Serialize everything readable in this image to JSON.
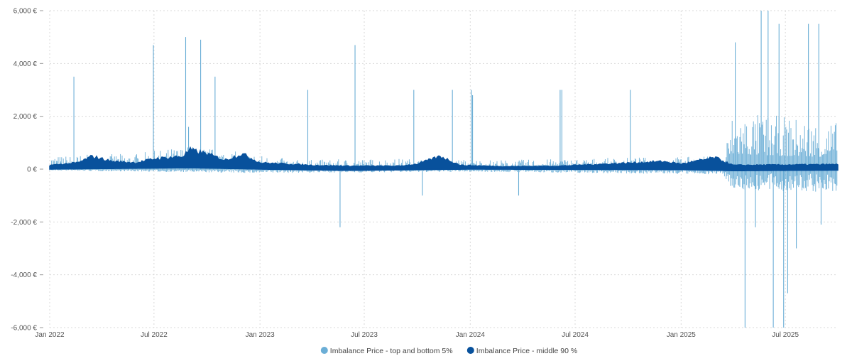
{
  "chart_data": {
    "type": "line",
    "title": "",
    "xlabel": "",
    "ylabel": "",
    "x_range": [
      "2022-01-01",
      "2025-09-30"
    ],
    "ylim": [
      -6000,
      6000
    ],
    "grid": true,
    "legend_position": "bottom-center",
    "x_ticks": [
      {
        "date": "2022-01-01",
        "label": "Jan 2022"
      },
      {
        "date": "2022-07-01",
        "label": "Jul 2022"
      },
      {
        "date": "2023-01-01",
        "label": "Jan 2023"
      },
      {
        "date": "2023-07-01",
        "label": "Jul 2023"
      },
      {
        "date": "2024-01-01",
        "label": "Jan 2024"
      },
      {
        "date": "2024-07-01",
        "label": "Jul 2024"
      },
      {
        "date": "2025-01-01",
        "label": "Jan 2025"
      },
      {
        "date": "2025-07-01",
        "label": "Jul 2025"
      }
    ],
    "y_ticks": [
      {
        "value": 6000,
        "label": "6,000 €"
      },
      {
        "value": 4000,
        "label": "4,000 €"
      },
      {
        "value": 2000,
        "label": "2,000 €"
      },
      {
        "value": 0,
        "label": "0 €"
      },
      {
        "value": -2000,
        "label": "-2,000 €"
      },
      {
        "value": -4000,
        "label": "-4,000 €"
      },
      {
        "value": -6000,
        "label": "-6,000 €"
      }
    ],
    "series": [
      {
        "name": "Imbalance Price - top and bottom 5%",
        "color": "#6baed6",
        "style": "spikes",
        "baseline_high": [
          {
            "date": "2022-01-01",
            "value": 500
          },
          {
            "date": "2022-06-01",
            "value": 600
          },
          {
            "date": "2022-09-01",
            "value": 900
          },
          {
            "date": "2022-12-15",
            "value": 600
          },
          {
            "date": "2023-03-01",
            "value": 350
          },
          {
            "date": "2023-09-01",
            "value": 400
          },
          {
            "date": "2024-03-01",
            "value": 350
          },
          {
            "date": "2024-11-01",
            "value": 450
          },
          {
            "date": "2025-03-15",
            "value": 500
          },
          {
            "date": "2025-04-01",
            "value": 2200
          },
          {
            "date": "2025-09-30",
            "value": 1800
          }
        ],
        "baseline_low": [
          {
            "date": "2022-01-01",
            "value": -50
          },
          {
            "date": "2023-01-01",
            "value": -150
          },
          {
            "date": "2024-01-01",
            "value": -100
          },
          {
            "date": "2025-03-15",
            "value": -200
          },
          {
            "date": "2025-04-01",
            "value": -800
          },
          {
            "date": "2025-09-30",
            "value": -900
          }
        ],
        "spikes": [
          {
            "date": "2022-02-12",
            "value": 3500
          },
          {
            "date": "2022-06-30",
            "value": 4700
          },
          {
            "date": "2022-08-25",
            "value": 5000
          },
          {
            "date": "2022-09-20",
            "value": 4900
          },
          {
            "date": "2022-10-15",
            "value": 3500
          },
          {
            "date": "2022-08-30",
            "value": 1600
          },
          {
            "date": "2023-03-25",
            "value": 3000
          },
          {
            "date": "2023-05-20",
            "value": -2200
          },
          {
            "date": "2023-06-15",
            "value": 4700
          },
          {
            "date": "2023-12-01",
            "value": 3000
          },
          {
            "date": "2023-09-25",
            "value": 3000
          },
          {
            "date": "2024-01-03",
            "value": 3000
          },
          {
            "date": "2024-01-05",
            "value": 2800
          },
          {
            "date": "2023-10-10",
            "value": -1000
          },
          {
            "date": "2024-06-05",
            "value": 3000
          },
          {
            "date": "2024-06-08",
            "value": 3000
          },
          {
            "date": "2024-10-05",
            "value": 3000
          },
          {
            "date": "2024-03-25",
            "value": -1000
          },
          {
            "date": "2025-04-05",
            "value": 4800
          },
          {
            "date": "2025-04-22",
            "value": -6000
          },
          {
            "date": "2025-05-20",
            "value": 6000
          },
          {
            "date": "2025-06-10",
            "value": -6000
          },
          {
            "date": "2025-06-01",
            "value": 6000
          },
          {
            "date": "2025-06-20",
            "value": 5500
          },
          {
            "date": "2025-06-28",
            "value": -6000
          },
          {
            "date": "2025-07-05",
            "value": -4700
          },
          {
            "date": "2025-07-20",
            "value": -3000
          },
          {
            "date": "2025-08-10",
            "value": 5500
          },
          {
            "date": "2025-08-28",
            "value": 5500
          },
          {
            "date": "2025-05-10",
            "value": -2200
          },
          {
            "date": "2025-09-01",
            "value": -2100
          }
        ]
      },
      {
        "name": "Imbalance Price - middle 90 %",
        "color": "#08519c",
        "style": "band",
        "band_upper": [
          {
            "date": "2022-01-01",
            "value": 150
          },
          {
            "date": "2022-02-20",
            "value": 250
          },
          {
            "date": "2022-03-15",
            "value": 500
          },
          {
            "date": "2022-04-20",
            "value": 300
          },
          {
            "date": "2022-06-01",
            "value": 250
          },
          {
            "date": "2022-07-01",
            "value": 400
          },
          {
            "date": "2022-08-20",
            "value": 500
          },
          {
            "date": "2022-09-01",
            "value": 750
          },
          {
            "date": "2022-10-01",
            "value": 600
          },
          {
            "date": "2022-11-01",
            "value": 350
          },
          {
            "date": "2022-12-01",
            "value": 600
          },
          {
            "date": "2023-01-01",
            "value": 250
          },
          {
            "date": "2023-04-01",
            "value": 150
          },
          {
            "date": "2023-06-01",
            "value": 120
          },
          {
            "date": "2023-09-01",
            "value": 120
          },
          {
            "date": "2023-10-01",
            "value": 200
          },
          {
            "date": "2023-11-10",
            "value": 500
          },
          {
            "date": "2023-12-15",
            "value": 150
          },
          {
            "date": "2024-03-01",
            "value": 100
          },
          {
            "date": "2024-06-01",
            "value": 120
          },
          {
            "date": "2024-10-15",
            "value": 250
          },
          {
            "date": "2024-12-01",
            "value": 300
          },
          {
            "date": "2025-01-01",
            "value": 200
          },
          {
            "date": "2025-03-01",
            "value": 450
          },
          {
            "date": "2025-04-01",
            "value": 150
          },
          {
            "date": "2025-09-30",
            "value": 180
          }
        ],
        "band_lower": [
          {
            "date": "2022-01-01",
            "value": 0
          },
          {
            "date": "2022-09-01",
            "value": 50
          },
          {
            "date": "2023-01-01",
            "value": 0
          },
          {
            "date": "2023-06-01",
            "value": -50
          },
          {
            "date": "2024-01-01",
            "value": 0
          },
          {
            "date": "2025-01-01",
            "value": -20
          },
          {
            "date": "2025-04-01",
            "value": -60
          },
          {
            "date": "2025-09-30",
            "value": -40
          }
        ]
      }
    ]
  }
}
